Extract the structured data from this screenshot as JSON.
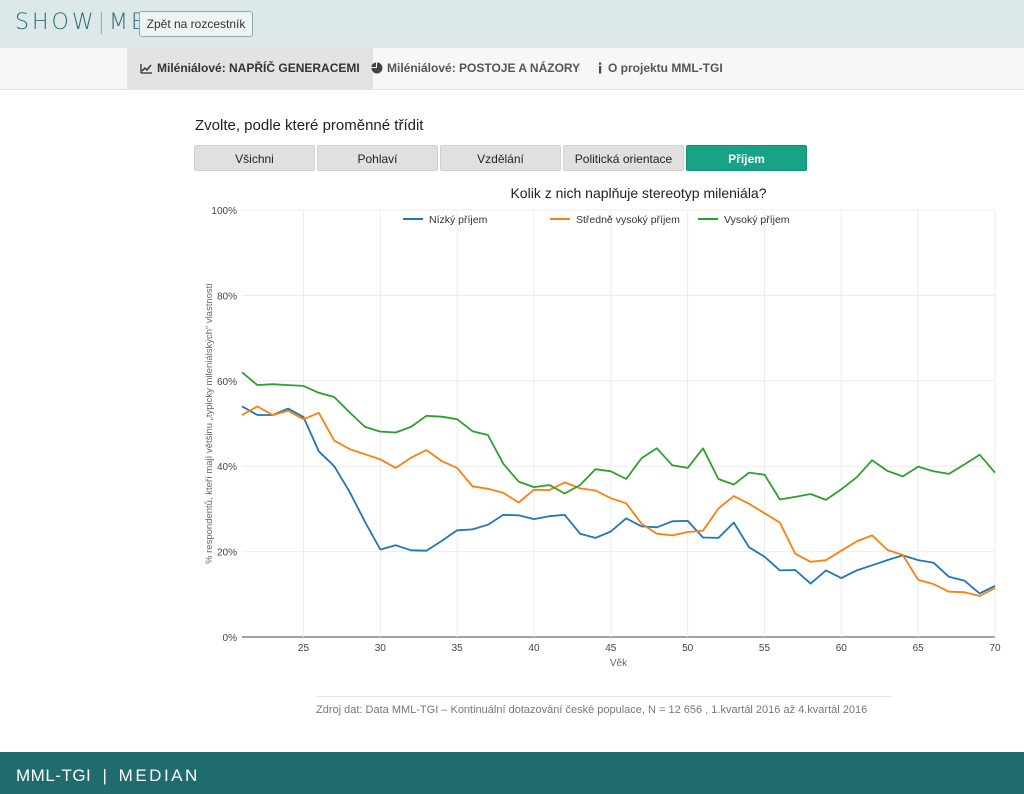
{
  "header": {
    "logo_left": "SHOW",
    "logo_right": "ME",
    "back_label": "Zpět na rozcestník"
  },
  "nav": {
    "tabs": [
      {
        "label": "Miléniálové: NAPŘÍČ GENERACEMI",
        "icon": "line-chart-icon",
        "active": true
      },
      {
        "label": "Miléniálové: POSTOJE A NÁZORY",
        "icon": "pie-chart-icon",
        "active": false
      },
      {
        "label": "O projektu MML-TGI",
        "icon": "info-icon",
        "active": false
      }
    ]
  },
  "filter": {
    "title": "Zvolte, podle které proměnné třídit",
    "buttons": [
      "Všichni",
      "Pohlaví",
      "Vzdělání",
      "Politická orientace",
      "Příjem"
    ],
    "active": "Příjem"
  },
  "chart_data": {
    "type": "line",
    "title": "Kolik z nich naplňuje stereotyp mileniála?",
    "xlabel": "Věk",
    "ylabel": "% respondentů, kteří mají většinu „typicky mileniálských“ vlastností",
    "xlim": [
      21,
      70
    ],
    "ylim": [
      0,
      100
    ],
    "xticks": [
      25,
      30,
      35,
      40,
      45,
      50,
      55,
      60,
      65,
      70
    ],
    "yticks": [
      0,
      20,
      40,
      60,
      80,
      100
    ],
    "ytick_labels": [
      "0%",
      "20%",
      "40%",
      "60%",
      "80%",
      "100%"
    ],
    "grid": true,
    "legend_position": "top",
    "x": [
      21,
      22,
      23,
      24,
      25,
      26,
      27,
      28,
      29,
      30,
      31,
      32,
      33,
      34,
      35,
      36,
      37,
      38,
      39,
      40,
      41,
      42,
      43,
      44,
      45,
      46,
      47,
      48,
      49,
      50,
      51,
      52,
      53,
      54,
      55,
      56,
      57,
      58,
      59,
      60,
      61,
      62,
      63,
      64,
      65,
      66,
      67,
      68,
      69,
      70
    ],
    "series": [
      {
        "name": "Nízký příjem",
        "color": "#1f77b4",
        "values": [
          54,
          52,
          52,
          53.5,
          51.5,
          43.5,
          40,
          34,
          27,
          20.5,
          21.5,
          20.3,
          20.2,
          22.5,
          25,
          25.2,
          26.3,
          28.6,
          28.5,
          27.6,
          28.3,
          28.6,
          24.2,
          23.2,
          24.7,
          27.8,
          25.9,
          25.7,
          27.1,
          27.2,
          23.3,
          23.2,
          26.8,
          21,
          18.8,
          15.6,
          15.7,
          12.5,
          15.6,
          13.8,
          15.6,
          16.8,
          18,
          19.1,
          18,
          17.4,
          14.1,
          13.2,
          10.2,
          12
        ]
      },
      {
        "name": "Středně vysoký příjem",
        "color": "#ff7f0e",
        "values": [
          52,
          54,
          52,
          53,
          51,
          52.5,
          46,
          44,
          42.8,
          41.6,
          39.6,
          42,
          43.8,
          41.2,
          39.6,
          35.3,
          34.7,
          33.8,
          31.5,
          34.5,
          34.4,
          36.2,
          34.8,
          34.3,
          32.5,
          31.3,
          26.5,
          24.2,
          23.8,
          24.6,
          24.9,
          30.1,
          33,
          31.2,
          29,
          26.8,
          19.5,
          17.6,
          18,
          20.2,
          22.4,
          23.8,
          20.4,
          19.2,
          13.4,
          12.4,
          10.6,
          10.5,
          9.6,
          11.5
        ]
      },
      {
        "name": "Vysoký příjem",
        "color": "#2ca02c",
        "values": [
          62,
          59,
          59.2,
          59,
          58.8,
          57.2,
          56.2,
          52.6,
          49.2,
          48.1,
          47.9,
          49.2,
          51.8,
          51.6,
          51,
          48.2,
          47.3,
          40.6,
          36.4,
          35.1,
          35.6,
          33.6,
          35.6,
          39.3,
          38.8,
          37,
          41.9,
          44.2,
          40.2,
          39.6,
          44.2,
          37,
          35.7,
          38.5,
          38,
          32.2,
          32.8,
          33.5,
          32.1,
          34.6,
          37.4,
          41.4,
          38.9,
          37.6,
          39.9,
          38.8,
          38.2,
          40.4,
          42.7,
          38.5
        ]
      }
    ]
  },
  "source": "Zdroj dat: Data MML-TGI – Kontinuální dotazování české populace, N = 12 656 , 1.kvartál 2016 až 4.kvartál 2016",
  "footer": {
    "left": "MML-TGI",
    "right": "MEDIAN"
  }
}
